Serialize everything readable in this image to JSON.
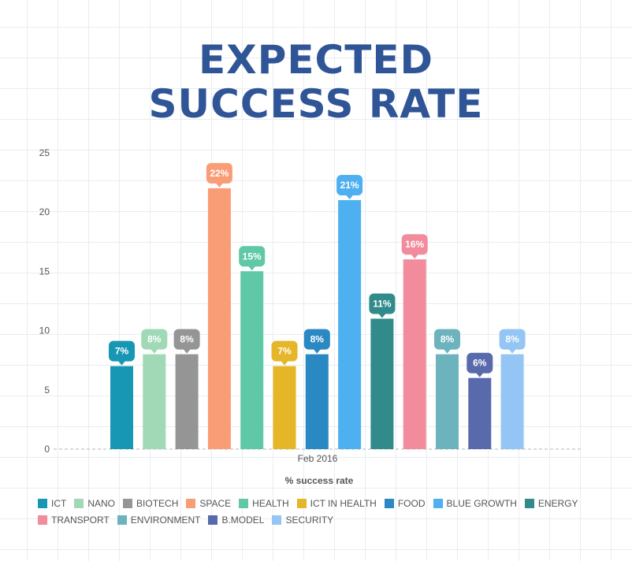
{
  "title": {
    "line1": "EXPECTED",
    "line2": "SUCCESS RATE"
  },
  "chart_data": {
    "type": "bar",
    "categories": [
      "Feb 2016"
    ],
    "xlabel": "% success rate",
    "ylabel": "",
    "ylim": [
      0,
      25
    ],
    "yticks": [
      0,
      5,
      10,
      15,
      20,
      25
    ],
    "grid": false,
    "legend_position": "bottom",
    "series": [
      {
        "name": "ICT",
        "values": [
          7
        ],
        "label": "7%",
        "color": "#1897b4"
      },
      {
        "name": "NANO",
        "values": [
          8
        ],
        "label": "8%",
        "color": "#a1d9b6"
      },
      {
        "name": "BIOTECH",
        "values": [
          8
        ],
        "label": "8%",
        "color": "#959595"
      },
      {
        "name": "SPACE",
        "values": [
          22
        ],
        "label": "22%",
        "color": "#f99d76"
      },
      {
        "name": "HEALTH",
        "values": [
          15
        ],
        "label": "15%",
        "color": "#5ec8a7"
      },
      {
        "name": "ICT IN HEALTH",
        "values": [
          7
        ],
        "label": "7%",
        "color": "#e5b628"
      },
      {
        "name": "FOOD",
        "values": [
          8
        ],
        "label": "8%",
        "color": "#2a88c3"
      },
      {
        "name": "BLUE GROWTH",
        "values": [
          21
        ],
        "label": "21%",
        "color": "#4eb0f0"
      },
      {
        "name": "ENERGY",
        "values": [
          11
        ],
        "label": "11%",
        "color": "#328b8b"
      },
      {
        "name": "TRANSPORT",
        "values": [
          16
        ],
        "label": "16%",
        "color": "#f28b9c"
      },
      {
        "name": "ENVIRONMENT",
        "values": [
          8
        ],
        "label": "8%",
        "color": "#6cb3be"
      },
      {
        "name": "B.MODEL",
        "values": [
          6
        ],
        "label": "6%",
        "color": "#586aab"
      },
      {
        "name": "SECURITY",
        "values": [
          8
        ],
        "label": "8%",
        "color": "#94c5f5"
      }
    ]
  }
}
